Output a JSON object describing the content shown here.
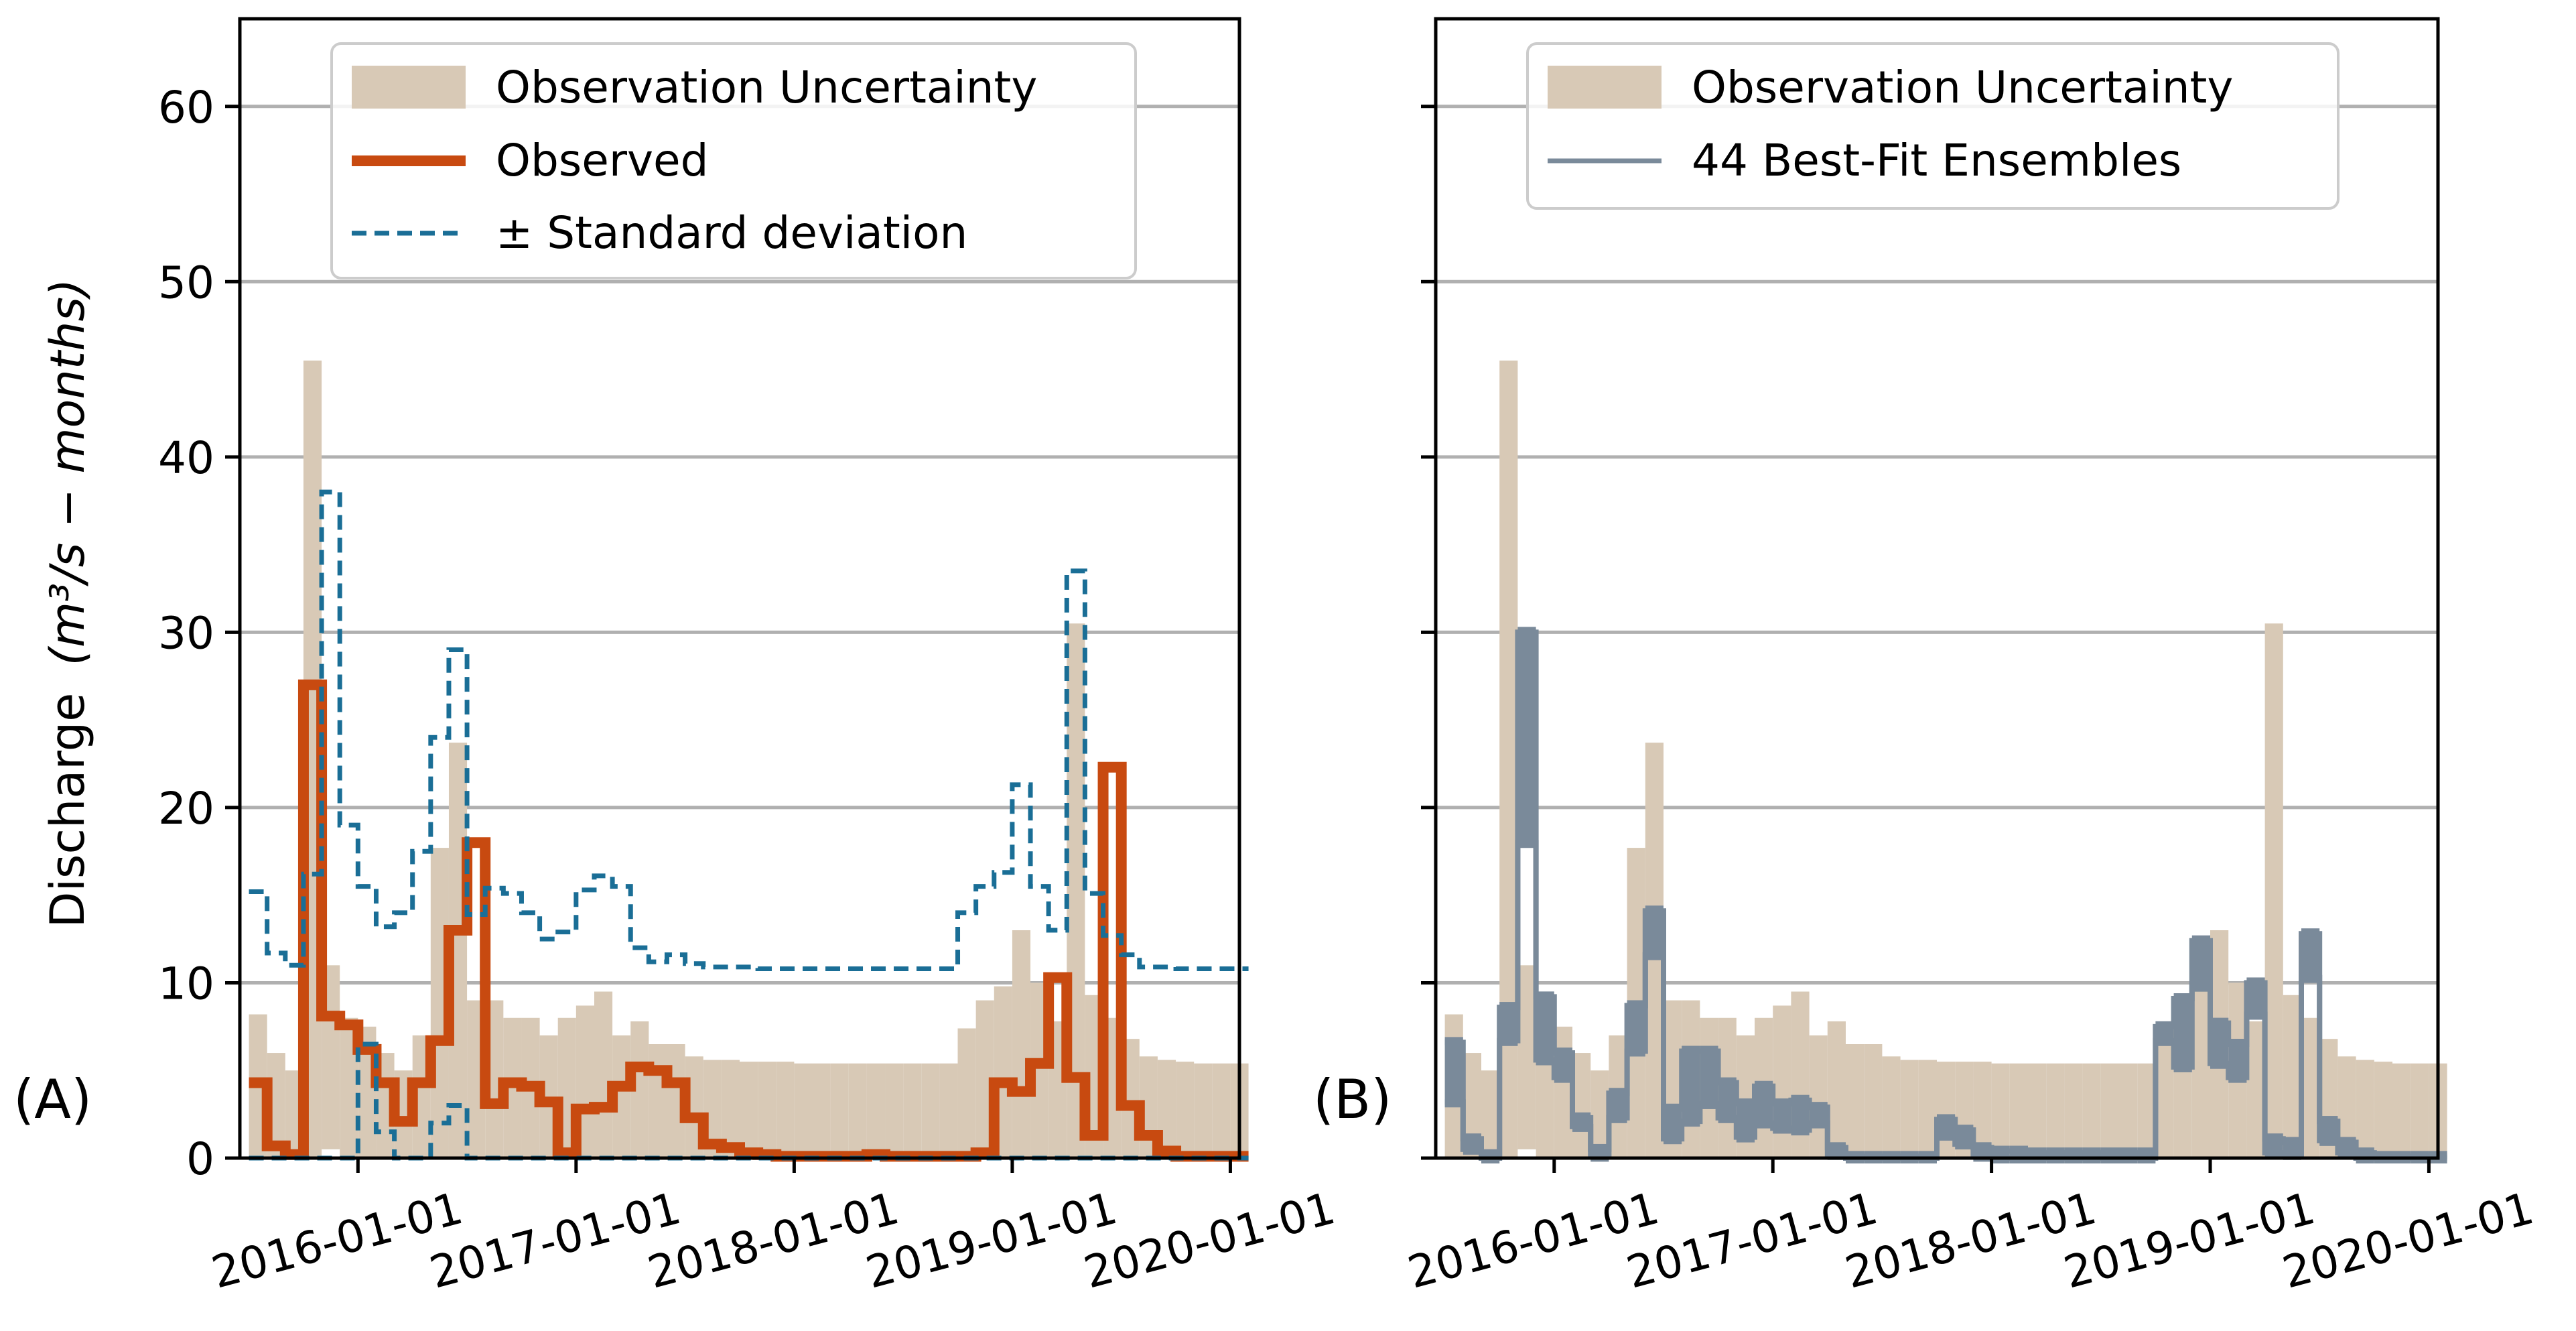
{
  "chart_data": {
    "type": "line",
    "ylabel": "Discharge",
    "ylabel_unit": "(m³/s − months)",
    "ylim": [
      0,
      65
    ],
    "yticks": [
      "0",
      "10",
      "20",
      "30",
      "40",
      "50",
      "60"
    ],
    "xlim_months": [
      -6.5,
      48.5
    ],
    "xticks": [
      {
        "label": "2016-01-01",
        "month": 0
      },
      {
        "label": "2017-01-01",
        "month": 12
      },
      {
        "label": "2018-01-01",
        "month": 24
      },
      {
        "label": "2019-01-01",
        "month": 36
      },
      {
        "label": "2020-01-01",
        "month": 48
      }
    ],
    "months_start": -6,
    "series": [
      {
        "name": "Observation Uncertainty",
        "kind": "band",
        "color": "#d8c9b6",
        "lower": [
          0,
          0,
          0,
          0,
          0.5,
          0,
          0,
          0,
          0,
          0,
          0,
          0,
          0,
          0,
          0,
          0,
          0,
          0,
          0,
          0,
          0,
          0,
          0,
          0,
          0,
          0,
          0,
          0,
          0,
          0,
          0,
          0,
          0,
          0,
          0,
          0,
          0,
          0,
          0,
          0,
          0,
          0,
          0,
          0,
          0,
          0,
          0,
          0,
          0,
          0,
          0,
          0,
          0,
          0,
          0
        ],
        "upper": [
          8.2,
          6,
          5,
          45.5,
          11,
          8,
          7.5,
          6,
          5,
          7,
          17.7,
          23.7,
          9,
          9,
          8,
          8,
          7,
          8,
          8.7,
          9.5,
          7,
          7.8,
          6.5,
          6.5,
          5.8,
          5.6,
          5.6,
          5.5,
          5.5,
          5.5,
          5.4,
          5.4,
          5.4,
          5.4,
          5.4,
          5.4,
          5.4,
          5.4,
          5.4,
          7.4,
          9,
          9.8,
          13,
          10,
          7.8,
          30.5,
          9.3,
          8,
          6.8,
          5.8,
          5.6,
          5.5,
          5.4,
          5.4,
          5.4
        ]
      },
      {
        "name": "Observed",
        "kind": "step",
        "color": "#c84a10",
        "values": [
          4.3,
          0.7,
          0.2,
          27,
          8.1,
          7.6,
          6.2,
          4.3,
          2.1,
          4.3,
          6.7,
          13,
          18,
          3.1,
          4.3,
          4.1,
          3.2,
          0.3,
          2.8,
          2.9,
          4.1,
          5.2,
          5,
          4.3,
          2.3,
          0.8,
          0.6,
          0.3,
          0.2,
          0.1,
          0.1,
          0.1,
          0.1,
          0.1,
          0.2,
          0.1,
          0.1,
          0.1,
          0.1,
          0.1,
          0.3,
          4.3,
          3.8,
          5.4,
          10.3,
          4.6,
          1.3,
          22.3,
          3,
          1.3,
          0.4,
          0.1,
          0.1,
          0.1,
          0.1
        ]
      },
      {
        "name": "± Standard deviation",
        "kind": "step_pair",
        "color": "#1a6e96",
        "upper": [
          15.2,
          11.7,
          11,
          16.2,
          38,
          19,
          15.5,
          13.2,
          14,
          17.5,
          24,
          29,
          13.9,
          15.4,
          15.1,
          14,
          12.5,
          12.9,
          15.3,
          16.1,
          15.5,
          12,
          11.2,
          11.6,
          11.1,
          10.9,
          10.9,
          10.9,
          10.8,
          10.8,
          10.8,
          10.8,
          10.8,
          10.8,
          10.8,
          10.8,
          10.8,
          10.8,
          10.8,
          14,
          15.5,
          16.3,
          21.3,
          15.5,
          13,
          33.5,
          15.1,
          12.7,
          11.6,
          10.9,
          10.9,
          10.8,
          10.8,
          10.8,
          10.8
        ],
        "lower": [
          0,
          0,
          0,
          0,
          0,
          0,
          6.5,
          1.5,
          0,
          0,
          2,
          3,
          0,
          0,
          0,
          0,
          0,
          0,
          0,
          0,
          0,
          0,
          0,
          0,
          0,
          0,
          0,
          0,
          0,
          0,
          0,
          0,
          0,
          0,
          0,
          0,
          0,
          0,
          0,
          0,
          0,
          0,
          0,
          0,
          0,
          0,
          0,
          0,
          0,
          0,
          0,
          0,
          0,
          0,
          0
        ]
      },
      {
        "name": "44 Best-Fit Ensembles",
        "kind": "step_envelope",
        "color": "#7a8a9a",
        "upper": [
          6.6,
          1.1,
          0.2,
          8.6,
          30,
          9.2,
          6,
          2.3,
          0.5,
          3.7,
          8.7,
          14.1,
          2.8,
          6.1,
          6.1,
          4.3,
          3.1,
          4.1,
          3.1,
          3.3,
          2.9,
          0.6,
          0.1,
          0.1,
          0.1,
          0.1,
          0.1,
          2.2,
          1.6,
          0.6,
          0.4,
          0.4,
          0.3,
          0.3,
          0.3,
          0.3,
          0.3,
          0.3,
          0.3,
          7.5,
          9.1,
          12.4,
          7.7,
          6.5,
          10,
          1.1,
          0.9,
          12.8,
          2.1,
          0.9,
          0.3,
          0.1,
          0.1,
          0.1,
          0.1
        ],
        "lower": [
          3.2,
          0.5,
          0,
          6.7,
          18,
          5.6,
          4.6,
          1.8,
          0.1,
          2.3,
          6.1,
          11.6,
          1.1,
          2.1,
          3.1,
          2.3,
          1.2,
          2,
          1.7,
          1.6,
          2,
          0.2,
          0,
          0,
          0,
          0,
          0,
          1.3,
          0.8,
          0.1,
          0,
          0,
          0,
          0,
          0,
          0,
          0,
          0,
          0,
          6.7,
          5.2,
          9.8,
          5.4,
          4.6,
          8.2,
          0.3,
          0.2,
          10.3,
          1,
          0.3,
          0,
          0,
          0,
          0,
          0
        ]
      }
    ],
    "panels": [
      {
        "label": "(A)",
        "legend": [
          "Observation Uncertainty",
          "Observed",
          "± Standard deviation"
        ]
      },
      {
        "label": "(B)",
        "legend": [
          "Observation Uncertainty",
          "44 Best-Fit Ensembles"
        ]
      }
    ]
  }
}
